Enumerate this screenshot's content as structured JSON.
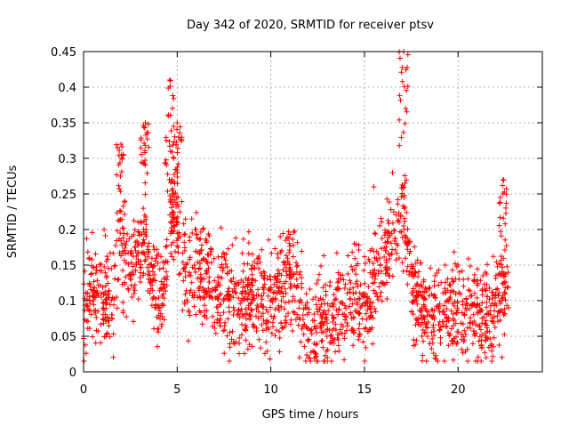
{
  "chart_data": {
    "type": "scatter",
    "title": "Day 342 of 2020, SRMTID for receiver ptsv",
    "xlabel": "GPS time / hours",
    "ylabel": "SRMTID / TECUs",
    "xlim": [
      0,
      24.5
    ],
    "ylim": [
      0,
      0.45
    ],
    "xticks": [
      0,
      5,
      10,
      15,
      20
    ],
    "yticks": [
      0,
      0.05,
      0.1,
      0.15,
      0.2,
      0.25,
      0.3,
      0.35,
      0.4,
      0.45
    ],
    "xtick_labels": [
      "0",
      "5",
      "10",
      "15",
      "20"
    ],
    "ytick_labels": [
      "0",
      "0.05",
      "0.1",
      "0.15",
      "0.2",
      "0.25",
      "0.3",
      "0.35",
      "0.4",
      "0.45"
    ],
    "grid": true,
    "marker": "+",
    "color": "#ff0000",
    "x_range": [
      0,
      22.7
    ],
    "envelope": {
      "x": [
        0,
        0.3,
        0.6,
        1.0,
        1.5,
        2.0,
        2.5,
        3.0,
        3.3,
        3.6,
        4.0,
        4.3,
        4.6,
        5.0,
        5.3,
        5.6,
        6.0,
        7.0,
        8.0,
        9.0,
        10.0,
        10.5,
        11.0,
        11.5,
        12.0,
        12.5,
        13.0,
        13.5,
        14.0,
        14.5,
        15.0,
        15.5,
        16.0,
        16.5,
        17.0,
        17.3,
        17.6,
        18.0,
        18.5,
        19.0,
        19.5,
        20.0,
        20.5,
        21.0,
        21.5,
        21.8,
        22.2,
        22.7
      ],
      "y": [
        0.07,
        0.12,
        0.1,
        0.1,
        0.1,
        0.17,
        0.14,
        0.16,
        0.2,
        0.13,
        0.1,
        0.12,
        0.22,
        0.22,
        0.15,
        0.12,
        0.14,
        0.12,
        0.1,
        0.11,
        0.1,
        0.12,
        0.14,
        0.1,
        0.07,
        0.06,
        0.07,
        0.08,
        0.09,
        0.1,
        0.09,
        0.13,
        0.16,
        0.18,
        0.22,
        0.18,
        0.11,
        0.09,
        0.08,
        0.08,
        0.09,
        0.09,
        0.08,
        0.08,
        0.09,
        0.07,
        0.1,
        0.1
      ]
    },
    "peaks": [
      {
        "x": 2.0,
        "y": 0.32
      },
      {
        "x": 3.3,
        "y": 0.35
      },
      {
        "x": 4.6,
        "y": 0.41
      },
      {
        "x": 5.0,
        "y": 0.35
      },
      {
        "x": 17.1,
        "y": 0.45
      },
      {
        "x": 22.4,
        "y": 0.27
      }
    ],
    "points": [
      {
        "x": 0.0,
        "y": 0.05
      },
      {
        "x": 0.3,
        "y": 0.16
      },
      {
        "x": 0.7,
        "y": 0.11
      },
      {
        "x": 1.5,
        "y": 0.08
      },
      {
        "x": 2.0,
        "y": 0.32
      },
      {
        "x": 2.2,
        "y": 0.24
      },
      {
        "x": 3.3,
        "y": 0.35
      },
      {
        "x": 4.0,
        "y": 0.06
      },
      {
        "x": 4.6,
        "y": 0.41
      },
      {
        "x": 5.0,
        "y": 0.35
      },
      {
        "x": 6.0,
        "y": 0.2
      },
      {
        "x": 8.0,
        "y": 0.08
      },
      {
        "x": 10.5,
        "y": 0.19
      },
      {
        "x": 12.0,
        "y": 0.02
      },
      {
        "x": 13.0,
        "y": 0.05
      },
      {
        "x": 15.5,
        "y": 0.26
      },
      {
        "x": 16.5,
        "y": 0.28
      },
      {
        "x": 17.1,
        "y": 0.45
      },
      {
        "x": 17.2,
        "y": 0.37
      },
      {
        "x": 18.5,
        "y": 0.04
      },
      {
        "x": 20.0,
        "y": 0.15
      },
      {
        "x": 21.5,
        "y": 0.02
      },
      {
        "x": 22.4,
        "y": 0.27
      },
      {
        "x": 22.7,
        "y": 0.09
      }
    ]
  }
}
